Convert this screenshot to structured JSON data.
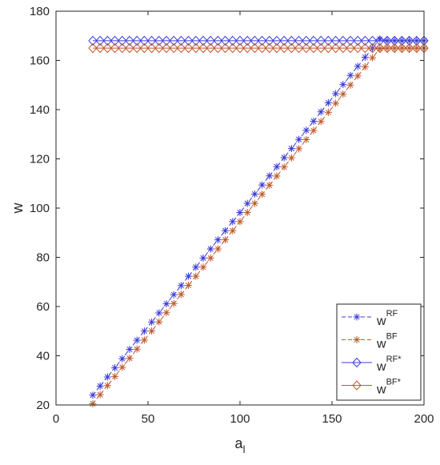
{
  "chart_data": {
    "type": "line",
    "xlabel": "a",
    "xlabel_sub": "l",
    "ylabel": "w",
    "xlim": [
      0,
      200
    ],
    "ylim": [
      20,
      180
    ],
    "xticks": [
      0,
      50,
      100,
      150,
      200
    ],
    "yticks": [
      20,
      40,
      60,
      80,
      100,
      120,
      140,
      160,
      180
    ],
    "grid": false,
    "legend_position": "bottom-right",
    "x": [
      20,
      24,
      28,
      32,
      36,
      40,
      44,
      48,
      52,
      56,
      60,
      64,
      68,
      72,
      76,
      80,
      84,
      88,
      92,
      96,
      100,
      104,
      108,
      112,
      116,
      120,
      124,
      128,
      132,
      136,
      140,
      144,
      148,
      152,
      156,
      160,
      164,
      168,
      172,
      176,
      180,
      184,
      188,
      192,
      196,
      200
    ],
    "series": [
      {
        "name": "w",
        "sup": "RF",
        "color": "#3b3bd9",
        "line": "dashed",
        "marker": "star",
        "values": [
          24.0,
          27.7,
          31.4,
          35.1,
          38.8,
          42.6,
          46.3,
          50.0,
          53.7,
          57.4,
          61.1,
          64.8,
          68.5,
          72.3,
          76.0,
          79.7,
          83.4,
          87.1,
          90.8,
          94.5,
          98.2,
          101.9,
          105.7,
          109.4,
          113.1,
          116.8,
          120.5,
          124.2,
          127.9,
          131.6,
          135.3,
          139.1,
          142.8,
          146.5,
          150.2,
          153.9,
          157.6,
          161.3,
          165.0,
          168.7,
          168.0,
          168.0,
          168.0,
          168.0,
          168.0,
          168.0
        ]
      },
      {
        "name": "w",
        "sup": "BF",
        "color": "#c0592b",
        "line": "dashed",
        "marker": "star",
        "values": [
          20.5,
          24.2,
          27.9,
          31.6,
          35.3,
          39.0,
          42.7,
          46.4,
          50.1,
          53.8,
          57.5,
          61.2,
          64.9,
          68.6,
          72.3,
          76.0,
          79.7,
          83.4,
          87.1,
          90.8,
          94.5,
          98.2,
          101.9,
          105.6,
          109.3,
          113.0,
          116.7,
          120.4,
          124.1,
          127.8,
          131.5,
          135.2,
          138.9,
          142.6,
          146.3,
          150.0,
          153.7,
          157.4,
          161.1,
          164.8,
          165.0,
          165.0,
          165.0,
          165.0,
          165.0,
          165.0
        ]
      },
      {
        "name": "w",
        "sup": "RF*",
        "color": "#3b3bd9",
        "line": "solid",
        "marker": "diamond",
        "values": [
          168,
          168,
          168,
          168,
          168,
          168,
          168,
          168,
          168,
          168,
          168,
          168,
          168,
          168,
          168,
          168,
          168,
          168,
          168,
          168,
          168,
          168,
          168,
          168,
          168,
          168,
          168,
          168,
          168,
          168,
          168,
          168,
          168,
          168,
          168,
          168,
          168,
          168,
          168,
          168,
          168,
          168,
          168,
          168,
          168,
          168
        ]
      },
      {
        "name": "w",
        "sup": "BF*",
        "color": "#c0592b",
        "line": "solid",
        "marker": "diamond",
        "values": [
          165,
          165,
          165,
          165,
          165,
          165,
          165,
          165,
          165,
          165,
          165,
          165,
          165,
          165,
          165,
          165,
          165,
          165,
          165,
          165,
          165,
          165,
          165,
          165,
          165,
          165,
          165,
          165,
          165,
          165,
          165,
          165,
          165,
          165,
          165,
          165,
          165,
          165,
          165,
          165,
          165,
          165,
          165,
          165,
          165,
          165
        ]
      }
    ]
  }
}
